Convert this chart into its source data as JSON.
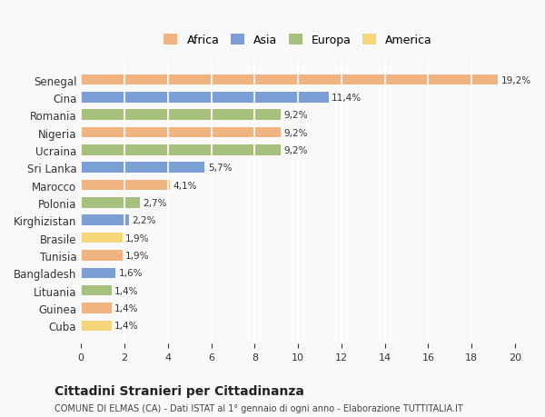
{
  "categories": [
    "Senegal",
    "Cina",
    "Romania",
    "Nigeria",
    "Ucraina",
    "Sri Lanka",
    "Marocco",
    "Polonia",
    "Kirghizistan",
    "Brasile",
    "Tunisia",
    "Bangladesh",
    "Lituania",
    "Guinea",
    "Cuba"
  ],
  "values": [
    19.2,
    11.4,
    9.2,
    9.2,
    9.2,
    5.7,
    4.1,
    2.7,
    2.2,
    1.9,
    1.9,
    1.6,
    1.4,
    1.4,
    1.4
  ],
  "labels": [
    "19,2%",
    "11,4%",
    "9,2%",
    "9,2%",
    "9,2%",
    "5,7%",
    "4,1%",
    "2,7%",
    "2,2%",
    "1,9%",
    "1,9%",
    "1,6%",
    "1,4%",
    "1,4%",
    "1,4%"
  ],
  "colors": [
    "#f0b482",
    "#7b9fd4",
    "#a8c07e",
    "#f0b482",
    "#a8c07e",
    "#7b9fd4",
    "#f0b482",
    "#a8c07e",
    "#7b9fd4",
    "#f5d67a",
    "#f0b482",
    "#7b9fd4",
    "#a8c07e",
    "#f0b482",
    "#f5d67a"
  ],
  "legend_labels": [
    "Africa",
    "Asia",
    "Europa",
    "America"
  ],
  "legend_colors": [
    "#f0b482",
    "#7b9fd4",
    "#a8c07e",
    "#f5d67a"
  ],
  "xlim": [
    0,
    20
  ],
  "xticks": [
    0,
    2,
    4,
    6,
    8,
    10,
    12,
    14,
    16,
    18,
    20
  ],
  "title": "Cittadini Stranieri per Cittadinanza",
  "subtitle": "COMUNE DI ELMAS (CA) - Dati ISTAT al 1° gennaio di ogni anno - Elaborazione TUTTITALIA.IT",
  "background_color": "#f9f9f9",
  "grid_color": "#ffffff",
  "bar_height": 0.6
}
